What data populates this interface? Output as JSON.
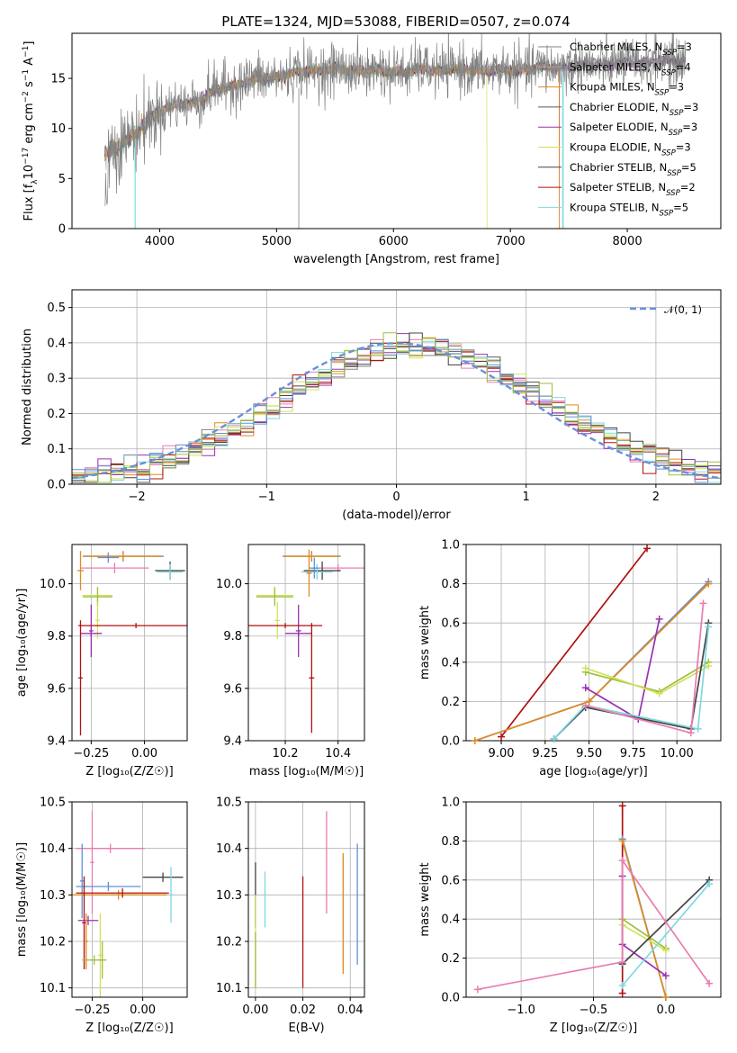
{
  "figure": {
    "title": "PLATE=1324, MJD=53088, FIBERID=0507, z=0.074",
    "colors": {
      "Chabrier MILES": "#808080",
      "Salpeter MILES": "#aaaaaa",
      "Kroupa MILES": "#e08a1e",
      "Chabrier ELODIE": "#5a5a5a",
      "Salpeter ELODIE": "#9b30b0",
      "Kroupa ELODIE": "#d4e05a",
      "Chabrier STELIB": "#444444",
      "Salpeter STELIB": "#b01010",
      "Kroupa STELIB": "#7fd8e0",
      "pink": "#e87db0",
      "blue": "#6090d8",
      "green": "#9ac040",
      "normal": "#6a90d8"
    }
  },
  "chart_data": [
    {
      "id": "spectrum",
      "type": "line",
      "title": "PLATE=1324, MJD=53088, FIBERID=0507, z=0.074",
      "xlabel": "wavelength [Angstrom, rest frame]",
      "ylabel_parts": [
        "Flux [f",
        "λ",
        "10",
        "−17",
        " erg cm",
        "−2",
        " s",
        "−1",
        " A",
        "−1",
        "]"
      ],
      "xlim": [
        3250,
        8800
      ],
      "ylim": [
        0,
        19.5
      ],
      "xticks": [
        4000,
        5000,
        6000,
        7000,
        8000
      ],
      "yticks": [
        0,
        5,
        10,
        15
      ],
      "grid": false,
      "legend_position": "right",
      "legend": [
        {
          "name": "Chabrier MILES, N",
          "sub": "SSP",
          "suffix": "=3",
          "color": "#808080"
        },
        {
          "name": "Salpeter MILES, N",
          "sub": "SSP",
          "suffix": "=4",
          "color": "#aaaaaa"
        },
        {
          "name": "Kroupa MILES, N",
          "sub": "SSP",
          "suffix": "=3",
          "color": "#e08a1e"
        },
        {
          "name": "Chabrier ELODIE, N",
          "sub": "SSP",
          "suffix": "=3",
          "color": "#5a5a5a"
        },
        {
          "name": "Salpeter ELODIE, N",
          "sub": "SSP",
          "suffix": "=3",
          "color": "#9b30b0"
        },
        {
          "name": "Kroupa ELODIE, N",
          "sub": "SSP",
          "suffix": "=3",
          "color": "#d4e05a"
        },
        {
          "name": "Chabrier STELIB, N",
          "sub": "SSP",
          "suffix": "=5",
          "color": "#444444"
        },
        {
          "name": "Salpeter STELIB, N",
          "sub": "SSP",
          "suffix": "=2",
          "color": "#b01010"
        },
        {
          "name": "Kroupa STELIB, N",
          "sub": "SSP",
          "suffix": "=5",
          "color": "#7fd8e0"
        }
      ],
      "continuum": [
        [
          3530,
          7
        ],
        [
          3700,
          8.5
        ],
        [
          3800,
          9
        ],
        [
          3900,
          10.5
        ],
        [
          4000,
          11.5
        ],
        [
          4100,
          11.8
        ],
        [
          4300,
          12.3
        ],
        [
          4500,
          13.5
        ],
        [
          4700,
          14.3
        ],
        [
          5000,
          14.8
        ],
        [
          5300,
          15.5
        ],
        [
          5600,
          15.5
        ],
        [
          6000,
          15.3
        ],
        [
          6300,
          15.5
        ],
        [
          6600,
          15.5
        ],
        [
          6900,
          15.4
        ],
        [
          7200,
          15.6
        ],
        [
          7500,
          15.9
        ],
        [
          7800,
          16
        ],
        [
          8200,
          16.3
        ],
        [
          8500,
          16.4
        ]
      ]
    },
    {
      "id": "residuals",
      "type": "step",
      "xlabel": "(data-model)/error",
      "ylabel": "Normed distribution",
      "xlim": [
        -2.5,
        2.5
      ],
      "ylim": [
        0,
        0.55
      ],
      "xticks": [
        -2,
        -1,
        0,
        1,
        2
      ],
      "yticks": [
        0.0,
        0.1,
        0.2,
        0.3,
        0.4,
        0.5
      ],
      "grid": true,
      "legend_position": "top-right",
      "legend": [
        {
          "name": "𝒩(0, 1)",
          "color": "#6a90d8",
          "style": "dashed"
        }
      ],
      "normal": {
        "mean": 0,
        "sigma": 1
      },
      "bin_width": 0.1
    },
    {
      "id": "age-vs-Z",
      "type": "errorbar",
      "xlabel": "Z [log₁₀(Z/Z☉)]",
      "ylabel": "age  [log₁₀(age/yr)]",
      "xlim": [
        -0.34,
        0.2
      ],
      "ylim": [
        9.4,
        10.15
      ],
      "xticks": [
        -0.25,
        0.0
      ],
      "yticks": [
        9.4,
        9.6,
        9.8,
        10.0
      ],
      "grid": true,
      "points": [
        {
          "x": -0.1,
          "y": 10.105,
          "xerr": 0.19,
          "yerr": 0.02,
          "color": "#808080"
        },
        {
          "x": -0.1,
          "y": 10.105,
          "xerr": 0.17,
          "yerr": 0.015,
          "color": "#e08a1e"
        },
        {
          "x": -0.14,
          "y": 10.06,
          "xerr": 0.16,
          "yerr": 0.02,
          "color": "#e87db0"
        },
        {
          "x": 0.12,
          "y": 10.05,
          "xerr": 0.07,
          "yerr": 0.035,
          "color": "#444444"
        },
        {
          "x": 0.12,
          "y": 10.045,
          "xerr": 0.06,
          "yerr": 0.03,
          "color": "#7fd8e0"
        },
        {
          "x": -0.17,
          "y": 10.1,
          "xerr": 0.05,
          "yerr": 0.02,
          "color": "#6090d8"
        },
        {
          "x": -0.3,
          "y": 10.05,
          "xerr": 0.015,
          "yerr": 0.075,
          "color": "#e08a1e"
        },
        {
          "x": -0.22,
          "y": 9.955,
          "xerr": 0.07,
          "yerr": 0.035,
          "color": "#d4e05a"
        },
        {
          "x": -0.22,
          "y": 9.95,
          "xerr": 0.07,
          "yerr": 0.035,
          "color": "#9ac040"
        },
        {
          "x": -0.22,
          "y": 9.86,
          "xerr": 0.01,
          "yerr": 0.07,
          "color": "#d4e05a"
        },
        {
          "x": -0.25,
          "y": 9.82,
          "xerr": 0.01,
          "yerr": 0.1,
          "color": "#9b30b0"
        },
        {
          "x": -0.25,
          "y": 9.81,
          "xerr": 0.05,
          "yerr": 0.01,
          "color": "#9b30b0"
        },
        {
          "x": -0.04,
          "y": 9.84,
          "xerr": 0.27,
          "yerr": 0.01,
          "color": "#b01010"
        },
        {
          "x": -0.3,
          "y": 9.64,
          "xerr": 0.01,
          "yerr": 0.22,
          "color": "#b01010"
        }
      ]
    },
    {
      "id": "age-vs-mass",
      "type": "errorbar",
      "xlabel": "mass [log₁₀(M/M☉)]",
      "ylabel": "",
      "xlim": [
        10.06,
        10.5
      ],
      "ylim": [
        9.4,
        10.15
      ],
      "xticks": [
        10.2,
        10.4
      ],
      "yticks": [
        9.4,
        9.6,
        9.8,
        10.0
      ],
      "grid": true,
      "points": [
        {
          "x": 10.3,
          "y": 10.105,
          "xerr": 0.11,
          "yerr": 0.02,
          "color": "#808080"
        },
        {
          "x": 10.3,
          "y": 10.105,
          "xerr": 0.1,
          "yerr": 0.015,
          "color": "#e08a1e"
        },
        {
          "x": 10.4,
          "y": 10.06,
          "xerr": 0.1,
          "yerr": 0.015,
          "color": "#e87db0"
        },
        {
          "x": 10.34,
          "y": 10.05,
          "xerr": 0.07,
          "yerr": 0.035,
          "color": "#444444"
        },
        {
          "x": 10.32,
          "y": 10.045,
          "xerr": 0.06,
          "yerr": 0.03,
          "color": "#7fd8e0"
        },
        {
          "x": 10.31,
          "y": 10.06,
          "xerr": 0.02,
          "yerr": 0.04,
          "color": "#6090d8"
        },
        {
          "x": 10.29,
          "y": 10.04,
          "xerr": 0.01,
          "yerr": 0.09,
          "color": "#e08a1e"
        },
        {
          "x": 10.16,
          "y": 9.955,
          "xerr": 0.07,
          "yerr": 0.035,
          "color": "#d4e05a"
        },
        {
          "x": 10.16,
          "y": 9.95,
          "xerr": 0.07,
          "yerr": 0.035,
          "color": "#9ac040"
        },
        {
          "x": 10.17,
          "y": 9.86,
          "xerr": 0.01,
          "yerr": 0.07,
          "color": "#d4e05a"
        },
        {
          "x": 10.25,
          "y": 9.82,
          "xerr": 0.01,
          "yerr": 0.1,
          "color": "#9b30b0"
        },
        {
          "x": 10.25,
          "y": 9.81,
          "xerr": 0.05,
          "yerr": 0.01,
          "color": "#9b30b0"
        },
        {
          "x": 10.2,
          "y": 9.84,
          "xerr": 0.14,
          "yerr": 0.01,
          "color": "#b01010"
        },
        {
          "x": 10.3,
          "y": 9.64,
          "xerr": 0.01,
          "yerr": 0.21,
          "color": "#b01010"
        }
      ]
    },
    {
      "id": "massweight-vs-age",
      "type": "line",
      "xlabel": "age  [log₁₀(age/yr)]",
      "ylabel": "mass weight",
      "xlim": [
        8.8,
        10.25
      ],
      "ylim": [
        0,
        1
      ],
      "xticks": [
        9.0,
        9.25,
        9.5,
        9.75,
        10.0
      ],
      "yticks": [
        0.0,
        0.2,
        0.4,
        0.6,
        0.8,
        1.0
      ],
      "grid": true,
      "series": [
        {
          "color": "#b01010",
          "points": [
            [
              9.0,
              0.02
            ],
            [
              9.83,
              0.98
            ]
          ]
        },
        {
          "color": "#6090d8",
          "points": [
            [
              8.85,
              0.0
            ],
            [
              9.5,
              0.2
            ],
            [
              10.18,
              0.81
            ]
          ]
        },
        {
          "color": "#e08a1e",
          "points": [
            [
              8.85,
              0.0
            ],
            [
              9.5,
              0.2
            ],
            [
              10.18,
              0.8
            ]
          ]
        },
        {
          "color": "#9b30b0",
          "points": [
            [
              9.48,
              0.27
            ],
            [
              9.78,
              0.11
            ],
            [
              9.9,
              0.62
            ]
          ]
        },
        {
          "color": "#9ac040",
          "points": [
            [
              9.48,
              0.35
            ],
            [
              9.9,
              0.25
            ],
            [
              10.18,
              0.4
            ]
          ]
        },
        {
          "color": "#d4e05a",
          "points": [
            [
              9.48,
              0.37
            ],
            [
              9.9,
              0.24
            ],
            [
              10.18,
              0.38
            ]
          ]
        },
        {
          "color": "#444444",
          "points": [
            [
              9.3,
              0.01
            ],
            [
              9.48,
              0.17
            ],
            [
              10.08,
              0.06
            ],
            [
              10.18,
              0.6
            ]
          ]
        },
        {
          "color": "#7fd8e0",
          "points": [
            [
              9.3,
              0.01
            ],
            [
              9.48,
              0.18
            ],
            [
              10.12,
              0.06
            ],
            [
              10.18,
              0.58
            ]
          ]
        },
        {
          "color": "#e87db0",
          "points": [
            [
              9.48,
              0.18
            ],
            [
              10.08,
              0.04
            ],
            [
              10.15,
              0.7
            ]
          ]
        }
      ]
    },
    {
      "id": "mass-vs-Z",
      "type": "errorbar",
      "xlabel": "Z [log₁₀(Z/Z☉)]",
      "ylabel": "mass [log₁₀(M/M☉)]",
      "xlim": [
        -0.35,
        0.22
      ],
      "ylim": [
        10.08,
        10.5
      ],
      "xticks": [
        -0.25,
        0.0
      ],
      "yticks": [
        10.1,
        10.2,
        10.3,
        10.4,
        10.5
      ],
      "grid": true,
      "points": [
        {
          "x": -0.16,
          "y": 10.4,
          "xerr": 0.17,
          "yerr": 0.01,
          "color": "#e87db0"
        },
        {
          "x": -0.25,
          "y": 10.37,
          "xerr": 0.01,
          "yerr": 0.11,
          "color": "#e87db0"
        },
        {
          "x": -0.3,
          "y": 10.33,
          "xerr": 0.01,
          "yerr": 0.08,
          "color": "#6090d8"
        },
        {
          "x": 0.1,
          "y": 10.338,
          "xerr": 0.1,
          "yerr": 0.01,
          "color": "#444444"
        },
        {
          "x": 0.14,
          "y": 10.3,
          "xerr": 0.01,
          "yerr": 0.06,
          "color": "#7fd8e0"
        },
        {
          "x": -0.17,
          "y": 10.318,
          "xerr": 0.16,
          "yerr": 0.01,
          "color": "#6090d8"
        },
        {
          "x": -0.12,
          "y": 10.3,
          "xerr": 0.24,
          "yerr": 0.01,
          "color": "#e08a1e"
        },
        {
          "x": -0.1,
          "y": 10.304,
          "xerr": 0.23,
          "yerr": 0.01,
          "color": "#b01010"
        },
        {
          "x": -0.29,
          "y": 10.24,
          "xerr": 0.01,
          "yerr": 0.1,
          "color": "#b01010"
        },
        {
          "x": -0.27,
          "y": 10.245,
          "xerr": 0.05,
          "yerr": 0.01,
          "color": "#9b30b0"
        },
        {
          "x": -0.21,
          "y": 10.17,
          "xerr": 0.01,
          "yerr": 0.09,
          "color": "#d4e05a"
        },
        {
          "x": -0.2,
          "y": 10.16,
          "xerr": 0.01,
          "yerr": 0.04,
          "color": "#9ac040"
        },
        {
          "x": -0.24,
          "y": 10.16,
          "xerr": 0.06,
          "yerr": 0.01,
          "color": "#9ac040"
        },
        {
          "x": -0.28,
          "y": 10.2,
          "xerr": 0.01,
          "yerr": 0.06,
          "color": "#e08a1e"
        }
      ]
    },
    {
      "id": "mass-vs-ebv",
      "type": "errorbar",
      "xlabel": "E(B-V)",
      "ylabel": "",
      "xlim": [
        -0.003,
        0.046
      ],
      "ylim": [
        10.08,
        10.5
      ],
      "xticks": [
        0.0,
        0.02,
        0.04
      ],
      "yticks": [
        10.1,
        10.2,
        10.3,
        10.4,
        10.5
      ],
      "grid": true,
      "points": [
        {
          "x": 0.0,
          "y": 10.3,
          "xerr": 0,
          "yerr": 0.07,
          "color": "#444444"
        },
        {
          "x": 0.0,
          "y": 10.2,
          "xerr": 0,
          "yerr": 0.1,
          "color": "#d4e05a"
        },
        {
          "x": 0.0,
          "y": 10.16,
          "xerr": 0,
          "yerr": 0.06,
          "color": "#9ac040"
        },
        {
          "x": 0.004,
          "y": 10.29,
          "xerr": 0,
          "yerr": 0.06,
          "color": "#7fd8e0"
        },
        {
          "x": 0.02,
          "y": 10.22,
          "xerr": 0,
          "yerr": 0.12,
          "color": "#b01010"
        },
        {
          "x": 0.03,
          "y": 10.37,
          "xerr": 0,
          "yerr": 0.11,
          "color": "#e87db0"
        },
        {
          "x": 0.037,
          "y": 10.26,
          "xerr": 0,
          "yerr": 0.13,
          "color": "#e08a1e"
        },
        {
          "x": 0.043,
          "y": 10.28,
          "xerr": 0,
          "yerr": 0.13,
          "color": "#6090d8"
        }
      ]
    },
    {
      "id": "massweight-vs-Z",
      "type": "line",
      "xlabel": "Z [log₁₀(Z/Z☉)]",
      "ylabel": "mass weight",
      "xlim": [
        -1.38,
        0.38
      ],
      "ylim": [
        0,
        1
      ],
      "xticks": [
        -1.0,
        -0.5,
        0.0
      ],
      "yticks": [
        0.0,
        0.2,
        0.4,
        0.6,
        0.8,
        1.0
      ],
      "grid": true,
      "series": [
        {
          "color": "#b01010",
          "points": [
            [
              -0.3,
              0.98
            ],
            [
              -0.3,
              0.02
            ]
          ]
        },
        {
          "color": "#6090d8",
          "points": [
            [
              -0.3,
              0.81
            ],
            [
              0.0,
              0.0
            ]
          ]
        },
        {
          "color": "#e08a1e",
          "points": [
            [
              -0.3,
              0.8
            ],
            [
              0.0,
              0.0
            ]
          ]
        },
        {
          "color": "#9b30b0",
          "points": [
            [
              -0.3,
              0.62
            ],
            [
              -0.3,
              0.27
            ],
            [
              0.0,
              0.11
            ]
          ]
        },
        {
          "color": "#9ac040",
          "points": [
            [
              -0.3,
              0.4
            ],
            [
              0.0,
              0.25
            ]
          ]
        },
        {
          "color": "#d4e05a",
          "points": [
            [
              -0.3,
              0.37
            ],
            [
              0.0,
              0.24
            ]
          ]
        },
        {
          "color": "#444444",
          "points": [
            [
              -0.3,
              0.17
            ],
            [
              0.3,
              0.6
            ]
          ]
        },
        {
          "color": "#7fd8e0",
          "points": [
            [
              -0.3,
              0.06
            ],
            [
              0.3,
              0.58
            ]
          ]
        },
        {
          "color": "#e87db0",
          "points": [
            [
              -1.3,
              0.04
            ],
            [
              -0.3,
              0.18
            ],
            [
              -0.3,
              0.7
            ],
            [
              0.3,
              0.07
            ]
          ]
        }
      ]
    }
  ]
}
